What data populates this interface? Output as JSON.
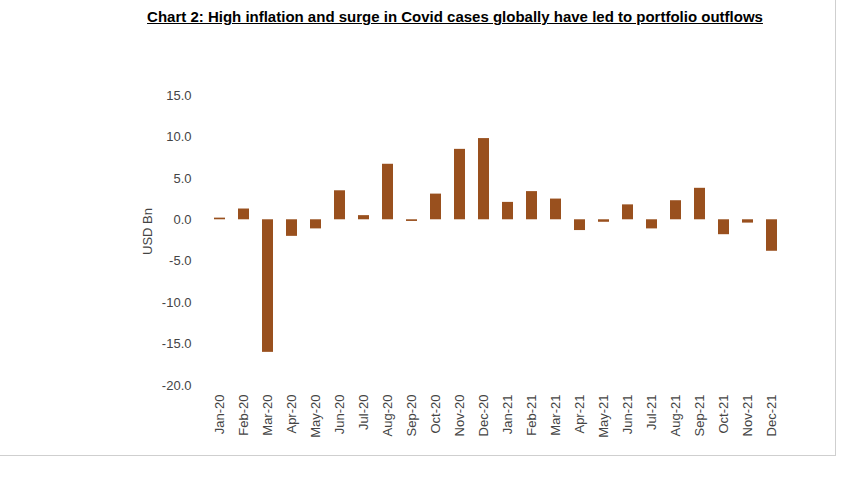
{
  "chart_data": {
    "type": "bar",
    "title": "Chart 2: High inflation and surge in Covid cases globally have led to portfolio outflows",
    "y_label": "USD Bn",
    "categories": [
      "Jan-20",
      "Feb-20",
      "Mar-20",
      "Apr-20",
      "May-20",
      "Jun-20",
      "Jul-20",
      "Aug-20",
      "Sep-20",
      "Oct-20",
      "Nov-20",
      "Dec-20",
      "Jan-21",
      "Feb-21",
      "Mar-21",
      "Apr-21",
      "May-21",
      "Jun-21",
      "Jul-21",
      "Aug-21",
      "Sep-21",
      "Oct-21",
      "Nov-21",
      "Dec-21"
    ],
    "values": [
      0.2,
      1.3,
      -16.0,
      -2.0,
      -1.1,
      3.5,
      0.5,
      6.7,
      -0.2,
      3.1,
      8.5,
      9.8,
      2.1,
      3.4,
      2.5,
      -1.3,
      -0.3,
      1.8,
      -1.1,
      2.3,
      3.8,
      -1.8,
      -0.4,
      -3.8
    ],
    "color": "#99501e",
    "ylim": [
      -20,
      15
    ],
    "yticks": [
      {
        "value": -20,
        "label": "-20.0"
      },
      {
        "value": -15,
        "label": "-15.0"
      },
      {
        "value": -10,
        "label": "-10.0"
      },
      {
        "value": -5,
        "label": "-5.0"
      },
      {
        "value": 0,
        "label": "0.0"
      },
      {
        "value": 5,
        "label": "5.0"
      },
      {
        "value": 10,
        "label": "10.0"
      },
      {
        "value": 15,
        "label": "15.0"
      }
    ],
    "grid": false
  }
}
